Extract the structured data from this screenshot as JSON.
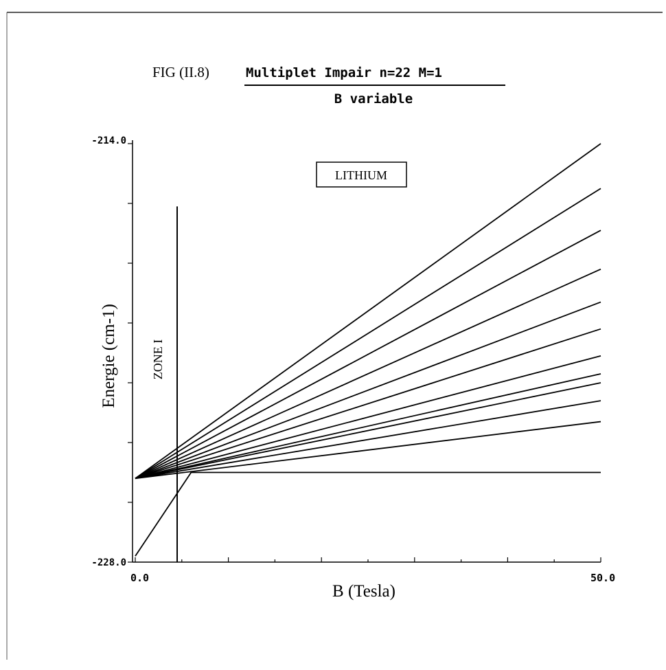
{
  "figure": {
    "fig_label": "FIG (II.8)",
    "title_line1": "Multiplet Impair n=22 M=1",
    "title_line2": "B variable"
  },
  "chart_data": {
    "type": "line",
    "title": "Multiplet Impair n=22 M=1",
    "subtitle": "B variable",
    "xlabel": "B (Tesla)",
    "ylabel": "Energie (cm-1)",
    "xlim": [
      0.0,
      50.0
    ],
    "ylim": [
      -228.0,
      -214.0
    ],
    "x_tick_labels": [
      "0.0",
      "50.0"
    ],
    "y_tick_labels": [
      "-214.0",
      "-228.0"
    ],
    "legend_box": "LITHIUM",
    "annotations": [
      {
        "text": "ZONE I",
        "x": 4.5,
        "y_range": [
          -228.0,
          -216.1
        ]
      }
    ],
    "series": [
      {
        "x": [
          0,
          50
        ],
        "y": [
          -225.2,
          -214.0
        ]
      },
      {
        "x": [
          0,
          50
        ],
        "y": [
          -225.2,
          -215.5
        ]
      },
      {
        "x": [
          0,
          50
        ],
        "y": [
          -225.2,
          -216.9
        ]
      },
      {
        "x": [
          0,
          50
        ],
        "y": [
          -225.2,
          -218.2
        ]
      },
      {
        "x": [
          0,
          50
        ],
        "y": [
          -225.2,
          -219.3
        ]
      },
      {
        "x": [
          0,
          50
        ],
        "y": [
          -225.2,
          -220.2
        ]
      },
      {
        "x": [
          0,
          50
        ],
        "y": [
          -225.2,
          -221.1
        ]
      },
      {
        "x": [
          0,
          50
        ],
        "y": [
          -225.2,
          -221.7
        ]
      },
      {
        "x": [
          0,
          50
        ],
        "y": [
          -225.2,
          -222.0
        ]
      },
      {
        "x": [
          0,
          50
        ],
        "y": [
          -225.2,
          -222.6
        ]
      },
      {
        "x": [
          0,
          50
        ],
        "y": [
          -225.2,
          -223.3
        ]
      },
      {
        "x": [
          0,
          6,
          50
        ],
        "y": [
          -227.8,
          -225.0,
          -225.0
        ]
      }
    ]
  }
}
